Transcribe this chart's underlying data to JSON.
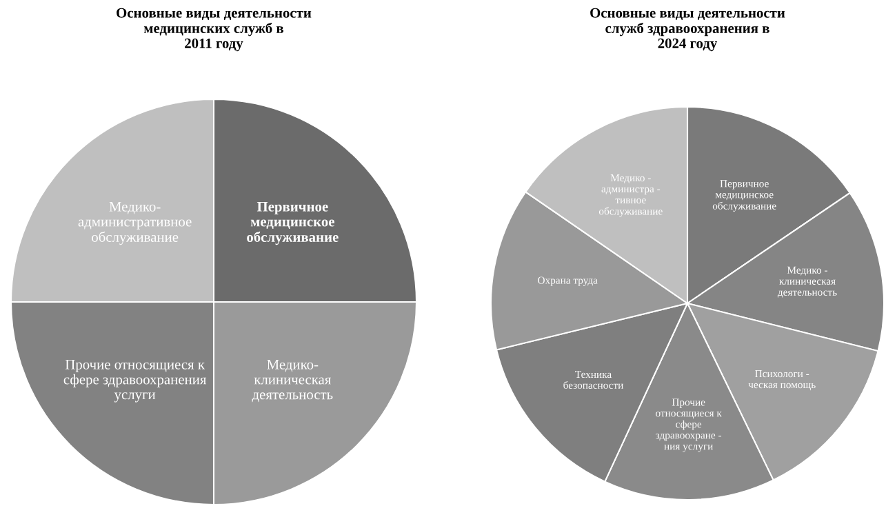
{
  "chart_data": [
    {
      "type": "pie",
      "title": "Основные виды деятельности\nмедицинских служб в\n2011 году",
      "categories": [
        "Первичное\nмедицинское\nобслуживание",
        "Медико-\nклиническая\nдеятельность",
        "Прочие относящиеся к\nсфере здравоохранения\nуслуги",
        "Медико-\nадминистративное\nобслуживание"
      ],
      "values": [
        25,
        25,
        25,
        25
      ],
      "colors": [
        "#6b6b6b",
        "#9a9a9a",
        "#828282",
        "#bfbfbf"
      ]
    },
    {
      "type": "pie",
      "title": "Основные виды деятельности\nслужб здравоохранения в\n2024 году",
      "categories": [
        "Первичное\nмедицинское\nобслуживание",
        "Медико -\nклиническая\nдеятельность",
        "Психологи -\nческая помощь",
        "Прочие\nотносящиеся к\nсфере\nздравоохране -\nния услуги",
        "Техника\nбезопасности",
        "Охрана труда",
        "Медико -\nадминистра -\nтивное\nобслуживание"
      ],
      "values": [
        15.5,
        13.4,
        13.9,
        14.1,
        14.3,
        13.4,
        15.4
      ],
      "colors": [
        "#7a7a7a",
        "#858585",
        "#a0a0a0",
        "#8a8a8a",
        "#7f7f7f",
        "#999999",
        "#bfbfbf"
      ]
    }
  ]
}
